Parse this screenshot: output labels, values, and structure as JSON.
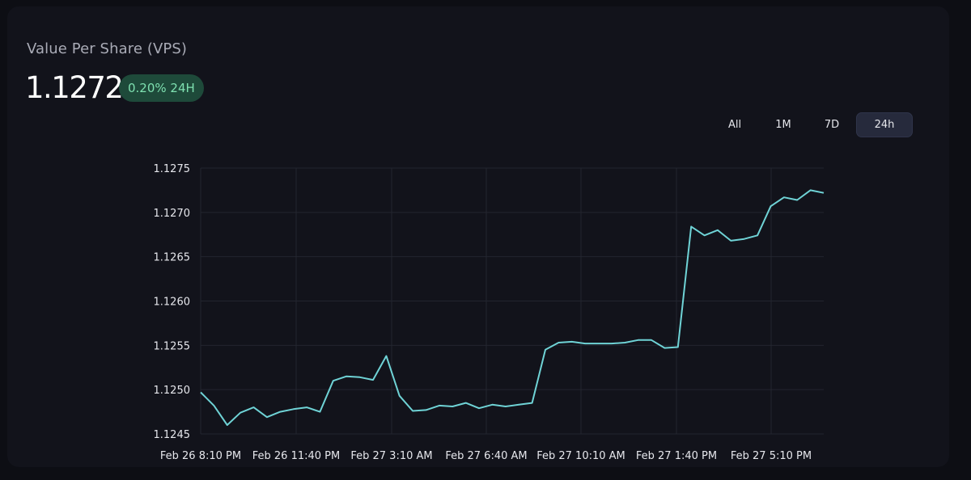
{
  "header": {
    "title": "Value Per Share (VPS)",
    "value": "1.1272",
    "change_badge": "0.20% 24H",
    "badge_color": "#1e4a3a",
    "badge_text_color": "#7ee0b0"
  },
  "tabs": [
    {
      "label": "All",
      "active": false
    },
    {
      "label": "1M",
      "active": false
    },
    {
      "label": "7D",
      "active": false
    },
    {
      "label": "24h",
      "active": true
    }
  ],
  "chart_data": {
    "type": "line",
    "title": "",
    "xlabel": "",
    "ylabel": "",
    "line_color": "#6fd3d6",
    "grid": true,
    "ylim": [
      1.1245,
      1.1275
    ],
    "yticks": [
      "1.1275",
      "1.1270",
      "1.1265",
      "1.1260",
      "1.1255",
      "1.1250",
      "1.1245"
    ],
    "xticks": [
      "Feb 26 8:10 PM",
      "Feb 26 11:40 PM",
      "Feb 27 3:10 AM",
      "Feb 27 6:40 AM",
      "Feb 27 10:10 AM",
      "Feb 27 1:40 PM",
      "Feb 27 5:10 PM"
    ],
    "series": [
      {
        "values": [
          1.12497,
          1.12482,
          1.1246,
          1.12474,
          1.1248,
          1.12469,
          1.12475,
          1.12478,
          1.1248,
          1.12475,
          1.1251,
          1.12515,
          1.12514,
          1.12511,
          1.12538,
          1.12493,
          1.12476,
          1.12477,
          1.12482,
          1.12481,
          1.12485,
          1.12479,
          1.12483,
          1.12481,
          1.12483,
          1.12485,
          1.12545,
          1.12553,
          1.12554,
          1.12552,
          1.12552,
          1.12552,
          1.12553,
          1.12556,
          1.12556,
          1.12547,
          1.12548,
          1.12684,
          1.12674,
          1.1268,
          1.12668,
          1.1267,
          1.12674,
          1.12707,
          1.12717,
          1.12714,
          1.12725,
          1.12722
        ]
      }
    ]
  }
}
